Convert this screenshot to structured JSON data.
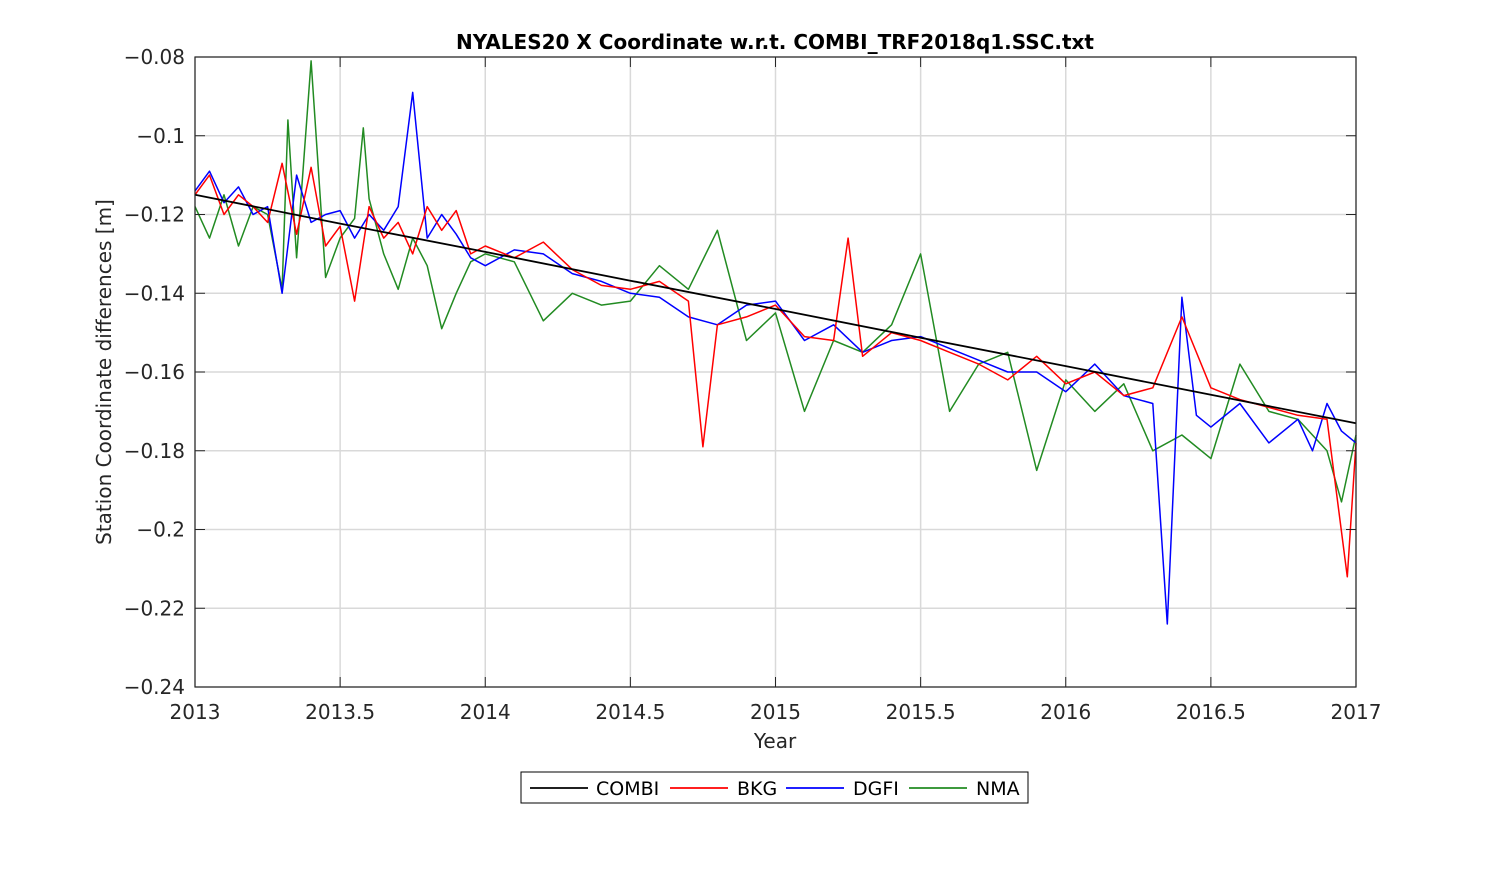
{
  "chart_data": {
    "type": "line",
    "title": "NYALES20 X Coordinate w.r.t. COMBI_TRF2018q1.SSC.txt",
    "xlabel": "Year",
    "ylabel": "Station Coordinate differences [m]",
    "xlim": [
      2013,
      2017
    ],
    "ylim": [
      -0.24,
      -0.08
    ],
    "x_ticks": [
      2013,
      2013.5,
      2014,
      2014.5,
      2015,
      2015.5,
      2016,
      2016.5,
      2017
    ],
    "x_tick_labels": [
      "2013",
      "2013.5",
      "2014",
      "2014.5",
      "2015",
      "2015.5",
      "2016",
      "2016.5",
      "2017"
    ],
    "y_ticks": [
      -0.24,
      -0.22,
      -0.2,
      -0.18,
      -0.16,
      -0.14,
      -0.12,
      -0.1,
      -0.08
    ],
    "y_tick_labels": [
      "−0.24",
      "−0.22",
      "−0.2",
      "−0.18",
      "−0.16",
      "−0.14",
      "−0.12",
      "−0.1",
      "−0.08"
    ],
    "grid": true,
    "legend_position": "bottom-outside",
    "series": [
      {
        "name": "COMBI",
        "color": "#000000",
        "x": [
          2013.0,
          2013.5,
          2014.0,
          2014.5,
          2015.0,
          2015.5,
          2016.0,
          2016.5,
          2017.0
        ],
        "y": [
          -0.115,
          -0.1223,
          -0.1295,
          -0.1368,
          -0.144,
          -0.1513,
          -0.1585,
          -0.1658,
          -0.173
        ]
      },
      {
        "name": "BKG",
        "color": "#ff0000",
        "x": [
          2013.0,
          2013.05,
          2013.1,
          2013.15,
          2013.2,
          2013.25,
          2013.3,
          2013.35,
          2013.4,
          2013.45,
          2013.5,
          2013.55,
          2013.6,
          2013.65,
          2013.7,
          2013.75,
          2013.8,
          2013.85,
          2013.9,
          2013.95,
          2014.0,
          2014.1,
          2014.2,
          2014.3,
          2014.4,
          2014.5,
          2014.6,
          2014.7,
          2014.75,
          2014.8,
          2014.9,
          2015.0,
          2015.1,
          2015.2,
          2015.25,
          2015.3,
          2015.4,
          2015.5,
          2015.6,
          2015.7,
          2015.8,
          2015.9,
          2016.0,
          2016.1,
          2016.2,
          2016.3,
          2016.4,
          2016.5,
          2016.6,
          2016.7,
          2016.8,
          2016.9,
          2016.97,
          2017.0
        ],
        "y": [
          -0.115,
          -0.11,
          -0.12,
          -0.115,
          -0.118,
          -0.122,
          -0.107,
          -0.125,
          -0.108,
          -0.128,
          -0.123,
          -0.142,
          -0.118,
          -0.126,
          -0.122,
          -0.13,
          -0.118,
          -0.124,
          -0.119,
          -0.13,
          -0.128,
          -0.131,
          -0.127,
          -0.134,
          -0.138,
          -0.139,
          -0.137,
          -0.142,
          -0.179,
          -0.148,
          -0.146,
          -0.143,
          -0.151,
          -0.152,
          -0.126,
          -0.156,
          -0.15,
          -0.152,
          -0.155,
          -0.158,
          -0.162,
          -0.156,
          -0.163,
          -0.16,
          -0.166,
          -0.164,
          -0.146,
          -0.164,
          -0.167,
          -0.169,
          -0.171,
          -0.172,
          -0.212,
          -0.178
        ]
      },
      {
        "name": "DGFI",
        "color": "#0000ff",
        "x": [
          2013.0,
          2013.05,
          2013.1,
          2013.15,
          2013.2,
          2013.25,
          2013.3,
          2013.35,
          2013.4,
          2013.45,
          2013.5,
          2013.55,
          2013.6,
          2013.65,
          2013.7,
          2013.75,
          2013.8,
          2013.85,
          2013.9,
          2013.95,
          2014.0,
          2014.1,
          2014.2,
          2014.3,
          2014.4,
          2014.5,
          2014.6,
          2014.7,
          2014.8,
          2014.9,
          2015.0,
          2015.1,
          2015.2,
          2015.3,
          2015.4,
          2015.5,
          2015.6,
          2015.7,
          2015.8,
          2015.9,
          2016.0,
          2016.1,
          2016.2,
          2016.3,
          2016.35,
          2016.4,
          2016.45,
          2016.5,
          2016.6,
          2016.7,
          2016.8,
          2016.85,
          2016.9,
          2016.95,
          2017.0
        ],
        "y": [
          -0.114,
          -0.109,
          -0.117,
          -0.113,
          -0.12,
          -0.118,
          -0.14,
          -0.11,
          -0.122,
          -0.12,
          -0.119,
          -0.126,
          -0.12,
          -0.124,
          -0.118,
          -0.089,
          -0.126,
          -0.12,
          -0.125,
          -0.131,
          -0.133,
          -0.129,
          -0.13,
          -0.135,
          -0.137,
          -0.14,
          -0.141,
          -0.146,
          -0.148,
          -0.143,
          -0.142,
          -0.152,
          -0.148,
          -0.155,
          -0.152,
          -0.151,
          -0.154,
          -0.157,
          -0.16,
          -0.16,
          -0.165,
          -0.158,
          -0.166,
          -0.168,
          -0.224,
          -0.141,
          -0.171,
          -0.174,
          -0.168,
          -0.178,
          -0.172,
          -0.18,
          -0.168,
          -0.175,
          -0.178
        ]
      },
      {
        "name": "NMA",
        "color": "#228b22",
        "x": [
          2013.0,
          2013.05,
          2013.1,
          2013.15,
          2013.2,
          2013.25,
          2013.3,
          2013.32,
          2013.35,
          2013.4,
          2013.45,
          2013.5,
          2013.55,
          2013.58,
          2013.6,
          2013.65,
          2013.7,
          2013.75,
          2013.8,
          2013.85,
          2013.9,
          2013.95,
          2014.0,
          2014.1,
          2014.2,
          2014.3,
          2014.4,
          2014.5,
          2014.6,
          2014.7,
          2014.8,
          2014.9,
          2015.0,
          2015.1,
          2015.2,
          2015.3,
          2015.4,
          2015.5,
          2015.6,
          2015.7,
          2015.8,
          2015.9,
          2016.0,
          2016.1,
          2016.2,
          2016.3,
          2016.4,
          2016.5,
          2016.6,
          2016.7,
          2016.8,
          2016.9,
          2016.95,
          2017.0
        ],
        "y": [
          -0.118,
          -0.126,
          -0.115,
          -0.128,
          -0.118,
          -0.12,
          -0.139,
          -0.096,
          -0.131,
          -0.081,
          -0.136,
          -0.126,
          -0.121,
          -0.098,
          -0.116,
          -0.13,
          -0.139,
          -0.126,
          -0.133,
          -0.149,
          -0.14,
          -0.132,
          -0.13,
          -0.132,
          -0.147,
          -0.14,
          -0.143,
          -0.142,
          -0.133,
          -0.139,
          -0.124,
          -0.152,
          -0.145,
          -0.17,
          -0.152,
          -0.155,
          -0.148,
          -0.13,
          -0.17,
          -0.158,
          -0.155,
          -0.185,
          -0.162,
          -0.17,
          -0.163,
          -0.18,
          -0.176,
          -0.182,
          -0.158,
          -0.17,
          -0.172,
          -0.18,
          -0.193,
          -0.176
        ]
      }
    ]
  }
}
